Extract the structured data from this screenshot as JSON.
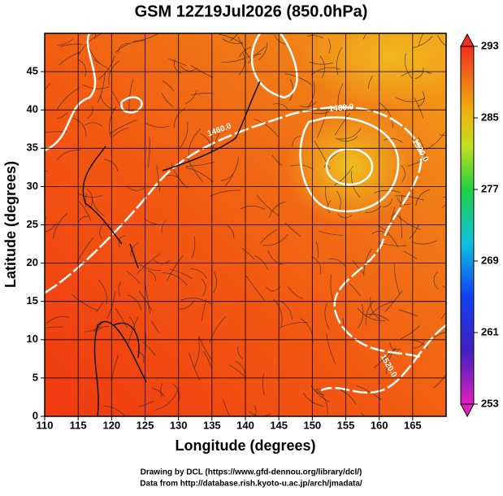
{
  "chart_data": {
    "type": "contour",
    "title": "GSM 12Z19Jul2026 (850.0hPa)",
    "x_label": "Longitude (degrees)",
    "y_label": "Latitude  (degrees)",
    "xlim": [
      110,
      170
    ],
    "ylim": [
      0,
      50
    ],
    "xticks": [
      110,
      115,
      120,
      125,
      130,
      135,
      140,
      145,
      150,
      155,
      160,
      165
    ],
    "yticks": [
      0,
      5,
      10,
      15,
      20,
      25,
      30,
      35,
      40,
      45
    ],
    "grid": true,
    "colorbar": {
      "lim": [
        253,
        293
      ],
      "ticks": [
        253,
        261,
        269,
        277,
        285,
        293
      ]
    },
    "contour_labels": [
      "1460.0",
      "1480.0",
      "1520.0",
      "1520.0"
    ],
    "credits": [
      "Drawing by DCL (https://www.gfd-dennou.org/library/dcl/)",
      "Data from http://database.rish.kyoto-u.ac.jp/arch/jmadata/"
    ]
  }
}
